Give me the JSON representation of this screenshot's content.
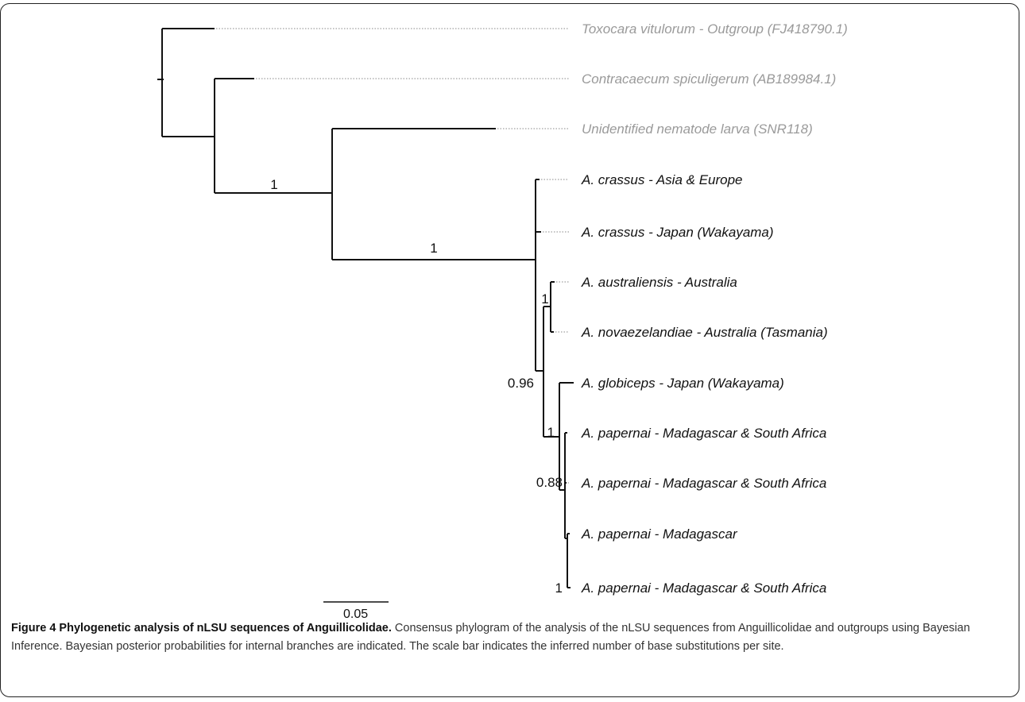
{
  "figure": {
    "scale_bar_label": "0.05",
    "caption_title": "Figure 4 Phylogenetic analysis of nLSU sequences of Anguillicolidae.",
    "caption_text": "Consensus phylogram of the analysis of the nLSU sequences from Anguillicolidae and outgroups using Bayesian Inference. Bayesian posterior probabilities for internal branches are indicated. The scale bar indicates the inferred number of base substitutions per site."
  },
  "tree": {
    "taxa": [
      "Toxocara vitulorum - Outgroup (FJ418790.1)",
      "Contracaecum spiculigerum (AB189984.1)",
      "Unidentified nematode larva (SNR118)",
      "A. crassus - Asia & Europe",
      "A. crassus - Japan (Wakayama)",
      "A. australiensis - Australia",
      "A. novaezelandiae - Australia (Tasmania)",
      "A. globiceps - Japan (Wakayama)",
      "A. papernai - Madagascar & South Africa",
      "A. papernai - Madagascar & South Africa",
      "A. papernai  - Madagascar",
      "A. papernai - Madagascar & South Africa"
    ],
    "outgroup_color": "#9a9a9a",
    "ingroup_color": "#111111",
    "supports": [
      "1",
      "1",
      "1",
      "0.96",
      "1",
      "0.88",
      "1"
    ]
  }
}
